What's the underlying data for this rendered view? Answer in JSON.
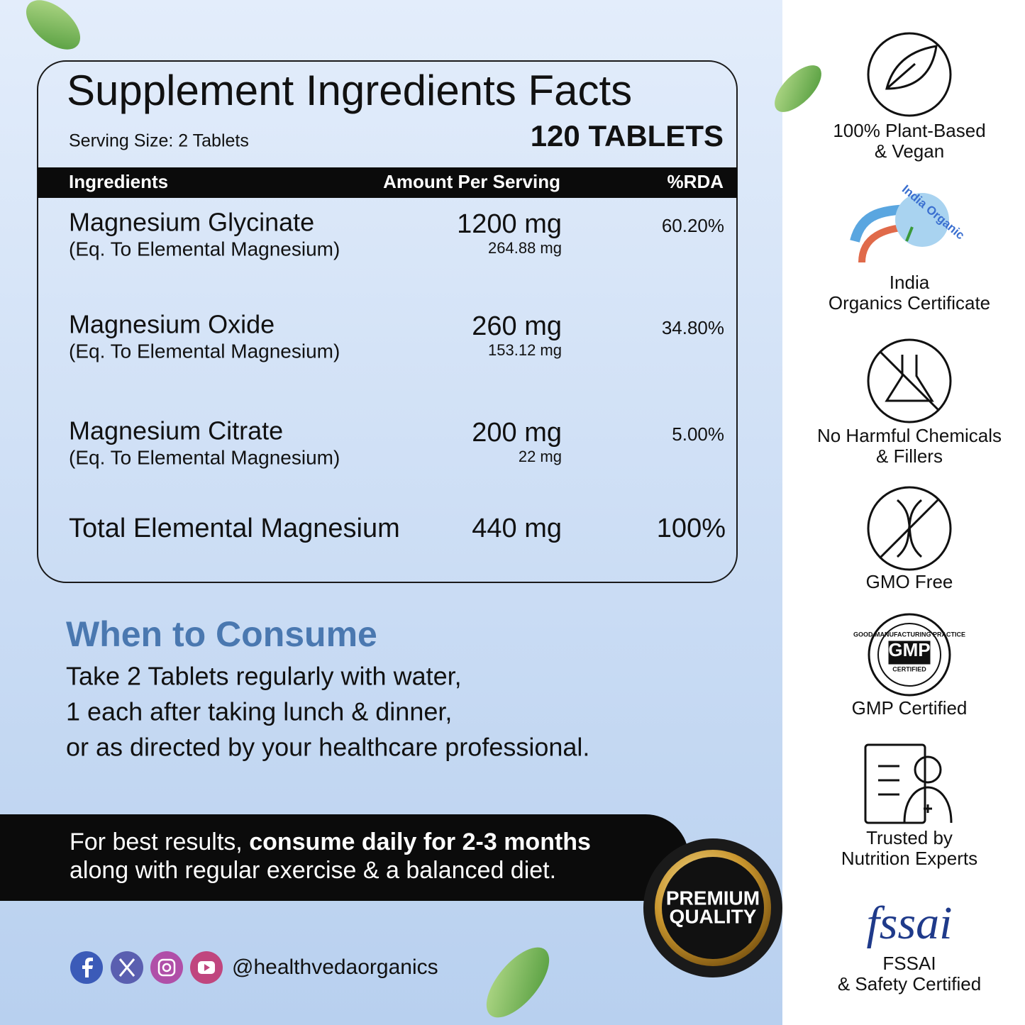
{
  "table": {
    "title": "Supplement Ingredients Facts",
    "serving_size": "Serving Size: 2 Tablets",
    "count": "120 TABLETS",
    "header": [
      "Ingredients",
      "Amount Per Serving",
      "%RDA"
    ],
    "rows": [
      {
        "name": "Magnesium Glycinate",
        "note": "(Eq. To Elemental Magnesium)",
        "amount": "1200 mg",
        "elemental": "264.88 mg",
        "rda": "60.20%"
      },
      {
        "name": "Magnesium Oxide",
        "note": "(Eq. To Elemental Magnesium)",
        "amount": "260 mg",
        "elemental": "153.12 mg",
        "rda": "34.80%"
      },
      {
        "name": "Magnesium Citrate",
        "note": "(Eq. To Elemental Magnesium)",
        "amount": "200 mg",
        "elemental": "22 mg",
        "rda": "5.00%"
      }
    ],
    "total": {
      "name": "Total Elemental Magnesium",
      "amount": "440 mg",
      "rda": "100%"
    }
  },
  "consume": {
    "heading": "When to Consume",
    "lines": [
      "Take 2 Tablets regularly with water,",
      "1 each after taking lunch & dinner,",
      "or as directed by your healthcare professional."
    ]
  },
  "banner": {
    "line1_regular": "For best results, ",
    "line1_bold": "consume daily for 2-3 months",
    "line2": "along with regular exercise & a balanced diet."
  },
  "badge": {
    "line1": "PREMIUM",
    "line2": "QUALITY"
  },
  "social": {
    "handle": "@healthvedaorganics"
  },
  "features": [
    {
      "label_lines": [
        "100% Plant-Based",
        "& Vegan"
      ]
    },
    {
      "logo_text": "India Organic",
      "label_lines": [
        "India",
        "Organics Certificate"
      ]
    },
    {
      "label_lines": [
        "No Harmful Chemicals",
        "& Fillers"
      ]
    },
    {
      "label_lines": [
        "GMO Free"
      ]
    },
    {
      "logo_text": "GOOD MANUFACTURING PRACTICE",
      "logo_mark": "GMP",
      "logo_sub": "CERTIFIED",
      "label_lines": [
        "GMP Certified"
      ]
    },
    {
      "label_lines": [
        "Trusted by",
        "Nutrition Experts"
      ]
    },
    {
      "logo_text": "fssai",
      "label_lines": [
        "FSSAI",
        "& Safety Certified"
      ]
    }
  ]
}
